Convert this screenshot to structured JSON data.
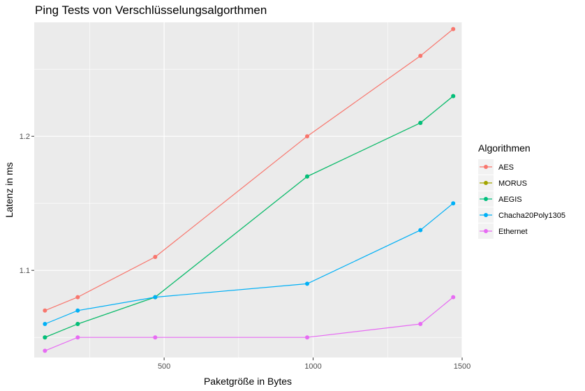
{
  "chart_data": {
    "type": "line",
    "title": "Ping Tests von Verschlüsselungsalgorthmen",
    "xlabel": "Paketgröße in Bytes",
    "ylabel": "Latenz in ms",
    "xlim": [
      64,
      1500
    ],
    "ylim": [
      1.035,
      1.285
    ],
    "x_ticks": [
      500,
      1000,
      1500
    ],
    "y_ticks": [
      1.1,
      1.2
    ],
    "grid": true,
    "legend": {
      "title": "Algorithmen",
      "position": "right"
    },
    "x": [
      100,
      210,
      470,
      980,
      1360,
      1470
    ],
    "series": [
      {
        "name": "AES",
        "color": "#F8766D",
        "values": [
          1.07,
          1.08,
          1.11,
          1.2,
          1.26,
          1.28
        ]
      },
      {
        "name": "MORUS",
        "color": "#A3A500",
        "values": [
          1.05,
          1.06,
          1.08,
          1.17,
          1.21,
          1.23
        ]
      },
      {
        "name": "AEGIS",
        "color": "#00BF7D",
        "values": [
          1.05,
          1.06,
          1.08,
          1.17,
          1.21,
          1.23
        ]
      },
      {
        "name": "Chacha20Poly1305",
        "color": "#00B0F6",
        "values": [
          1.06,
          1.07,
          1.08,
          1.09,
          1.13,
          1.15
        ]
      },
      {
        "name": "Ethernet",
        "color": "#E76BF3",
        "values": [
          1.04,
          1.05,
          1.05,
          1.05,
          1.06,
          1.08
        ]
      }
    ]
  }
}
